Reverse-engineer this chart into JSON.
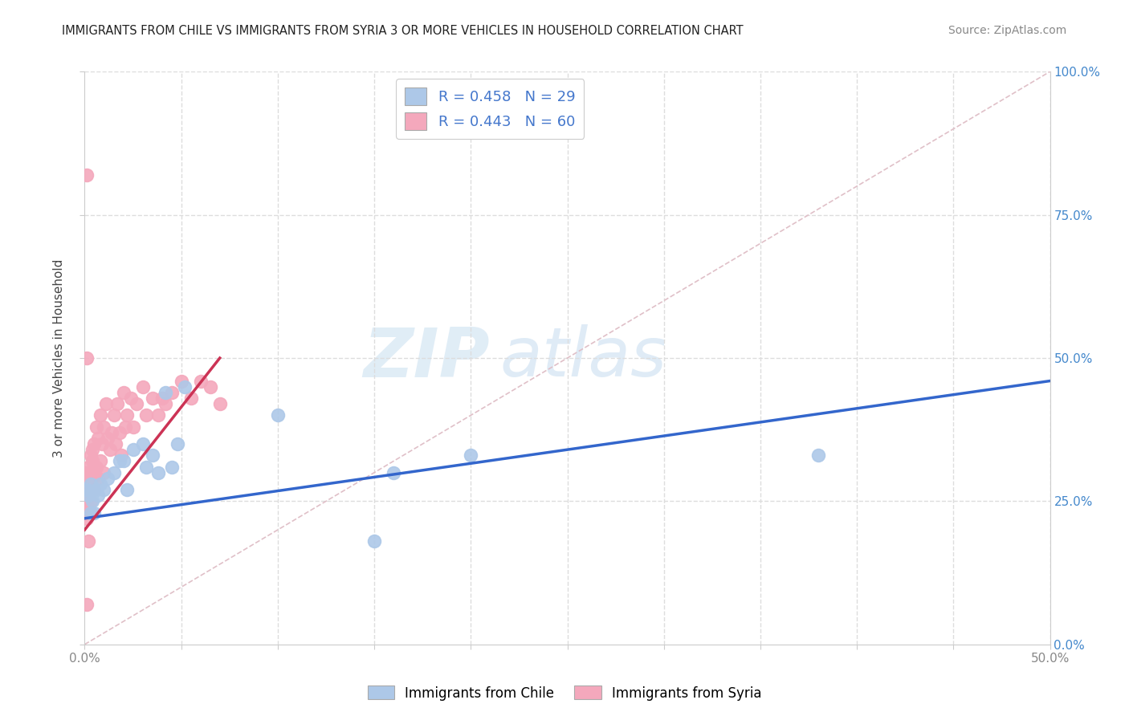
{
  "title": "IMMIGRANTS FROM CHILE VS IMMIGRANTS FROM SYRIA 3 OR MORE VEHICLES IN HOUSEHOLD CORRELATION CHART",
  "source": "Source: ZipAtlas.com",
  "ylabel": "3 or more Vehicles in Household",
  "xlim": [
    0.0,
    0.5
  ],
  "ylim": [
    0.0,
    1.0
  ],
  "chile_R": 0.458,
  "chile_N": 29,
  "syria_R": 0.443,
  "syria_N": 60,
  "chile_color": "#adc8e8",
  "syria_color": "#f4a8bc",
  "chile_line_color": "#3366cc",
  "syria_line_color": "#cc3355",
  "watermark_zip": "ZIP",
  "watermark_atlas": "atlas",
  "background_color": "#ffffff",
  "grid_color": "#dddddd",
  "chile_x": [
    0.001,
    0.002,
    0.003,
    0.004,
    0.005,
    0.006,
    0.007,
    0.008,
    0.01,
    0.012,
    0.015,
    0.018,
    0.02,
    0.022,
    0.025,
    0.03,
    0.032,
    0.035,
    0.038,
    0.042,
    0.045,
    0.048,
    0.052,
    0.1,
    0.15,
    0.16,
    0.2,
    0.38,
    0.003
  ],
  "chile_y": [
    0.27,
    0.26,
    0.28,
    0.25,
    0.23,
    0.27,
    0.26,
    0.28,
    0.27,
    0.29,
    0.3,
    0.32,
    0.32,
    0.27,
    0.34,
    0.35,
    0.31,
    0.33,
    0.3,
    0.44,
    0.31,
    0.35,
    0.45,
    0.4,
    0.18,
    0.3,
    0.33,
    0.33,
    0.23
  ],
  "syria_x": [
    0.001,
    0.001,
    0.001,
    0.001,
    0.001,
    0.001,
    0.001,
    0.002,
    0.002,
    0.002,
    0.002,
    0.003,
    0.003,
    0.003,
    0.004,
    0.004,
    0.004,
    0.005,
    0.005,
    0.005,
    0.006,
    0.006,
    0.007,
    0.007,
    0.008,
    0.008,
    0.009,
    0.01,
    0.01,
    0.011,
    0.012,
    0.013,
    0.014,
    0.015,
    0.016,
    0.017,
    0.018,
    0.019,
    0.02,
    0.021,
    0.022,
    0.024,
    0.025,
    0.027,
    0.03,
    0.032,
    0.035,
    0.038,
    0.04,
    0.042,
    0.045,
    0.05,
    0.055,
    0.06,
    0.065,
    0.07,
    0.001,
    0.002,
    0.001,
    0.001
  ],
  "syria_y": [
    0.25,
    0.23,
    0.27,
    0.22,
    0.3,
    0.26,
    0.28,
    0.29,
    0.24,
    0.31,
    0.27,
    0.33,
    0.28,
    0.25,
    0.32,
    0.29,
    0.34,
    0.35,
    0.27,
    0.3,
    0.38,
    0.31,
    0.36,
    0.29,
    0.4,
    0.32,
    0.35,
    0.38,
    0.3,
    0.42,
    0.36,
    0.34,
    0.37,
    0.4,
    0.35,
    0.42,
    0.37,
    0.33,
    0.44,
    0.38,
    0.4,
    0.43,
    0.38,
    0.42,
    0.45,
    0.4,
    0.43,
    0.4,
    0.43,
    0.42,
    0.44,
    0.46,
    0.43,
    0.46,
    0.45,
    0.42,
    0.5,
    0.18,
    0.07,
    0.82
  ],
  "syria_line_x0": 0.0,
  "syria_line_y0": 0.2,
  "syria_line_x1": 0.07,
  "syria_line_y1": 0.5,
  "chile_line_x0": 0.0,
  "chile_line_y0": 0.22,
  "chile_line_x1": 0.5,
  "chile_line_y1": 0.46
}
